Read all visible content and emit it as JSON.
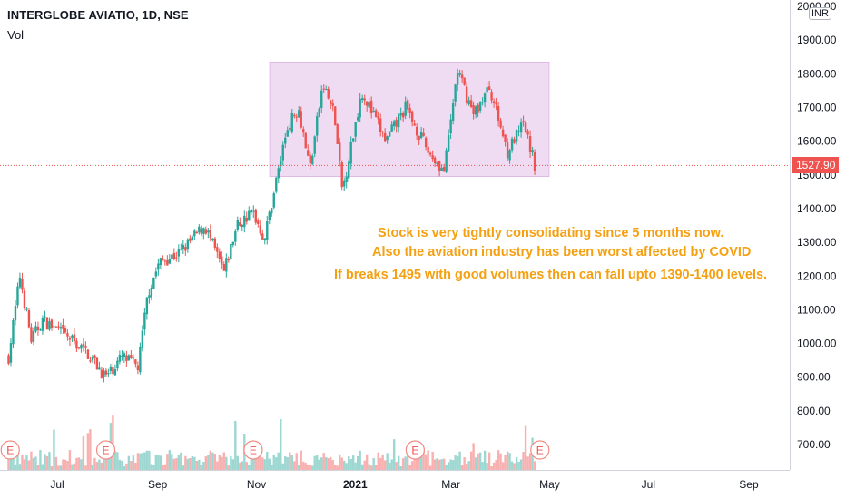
{
  "header": {
    "title": "INTERGLOBE AVIATIO, 1D, NSE",
    "volume_label": "Vol",
    "currency": "INR"
  },
  "last_price": "1527.90",
  "annotations": [
    "Stock is very tightly consolidating since 5 months now.",
    "Also the aviation industry has been worst affected by COVID",
    "If breaks 1495 with good volumes then can fall upto 1390-1400 levels."
  ],
  "earnings_marker": "E",
  "colors": {
    "up": "#26a69a",
    "down": "#ef5350",
    "range_box": "#e1bee7",
    "annotation": "#f5a011",
    "last_price_line": "#ef5350"
  },
  "chart_data": {
    "type": "candlestick",
    "title": "INTERGLOBE AVIATIO, 1D, NSE",
    "ylim": [
      650,
      2000
    ],
    "y_ticks": [
      "700.00",
      "800.00",
      "900.00",
      "1000.00",
      "1100.00",
      "1200.00",
      "1300.00",
      "1400.00",
      "1500.00",
      "1600.00",
      "1700.00",
      "1800.00",
      "1900.00",
      "2000.00"
    ],
    "x_ticks": [
      "Jul",
      "Sep",
      "Nov",
      "2021",
      "Mar",
      "May",
      "Jul",
      "Sep"
    ],
    "consolidation_range": {
      "low": 1495,
      "high": 1835,
      "period": "Nov 2020 – Apr 2021"
    },
    "price_path": [
      {
        "date": "2020-06-01",
        "price": 960
      },
      {
        "date": "2020-06-08",
        "price": 1200
      },
      {
        "date": "2020-06-15",
        "price": 1010
      },
      {
        "date": "2020-06-22",
        "price": 1070
      },
      {
        "date": "2020-07-01",
        "price": 1040
      },
      {
        "date": "2020-07-10",
        "price": 1010
      },
      {
        "date": "2020-07-20",
        "price": 970
      },
      {
        "date": "2020-07-31",
        "price": 900
      },
      {
        "date": "2020-08-10",
        "price": 960
      },
      {
        "date": "2020-08-20",
        "price": 930
      },
      {
        "date": "2020-08-26",
        "price": 1150
      },
      {
        "date": "2020-09-02",
        "price": 1240
      },
      {
        "date": "2020-09-15",
        "price": 1270
      },
      {
        "date": "2020-09-30",
        "price": 1350
      },
      {
        "date": "2020-10-12",
        "price": 1210
      },
      {
        "date": "2020-10-20",
        "price": 1350
      },
      {
        "date": "2020-10-30",
        "price": 1390
      },
      {
        "date": "2020-11-06",
        "price": 1310
      },
      {
        "date": "2020-11-13",
        "price": 1480
      },
      {
        "date": "2020-11-20",
        "price": 1640
      },
      {
        "date": "2020-11-27",
        "price": 1700
      },
      {
        "date": "2020-12-04",
        "price": 1520
      },
      {
        "date": "2020-12-12",
        "price": 1770
      },
      {
        "date": "2020-12-19",
        "price": 1680
      },
      {
        "date": "2020-12-24",
        "price": 1450
      },
      {
        "date": "2021-01-05",
        "price": 1750
      },
      {
        "date": "2021-01-20",
        "price": 1600
      },
      {
        "date": "2021-02-01",
        "price": 1700
      },
      {
        "date": "2021-02-15",
        "price": 1570
      },
      {
        "date": "2021-02-25",
        "price": 1510
      },
      {
        "date": "2021-03-05",
        "price": 1810
      },
      {
        "date": "2021-03-15",
        "price": 1680
      },
      {
        "date": "2021-03-25",
        "price": 1760
      },
      {
        "date": "2021-04-05",
        "price": 1570
      },
      {
        "date": "2021-04-15",
        "price": 1650
      },
      {
        "date": "2021-04-22",
        "price": 1528
      }
    ],
    "earnings_dates": [
      "2020-06-02",
      "2020-07-31",
      "2020-10-30",
      "2021-02-07",
      "2021-04-25"
    ]
  }
}
